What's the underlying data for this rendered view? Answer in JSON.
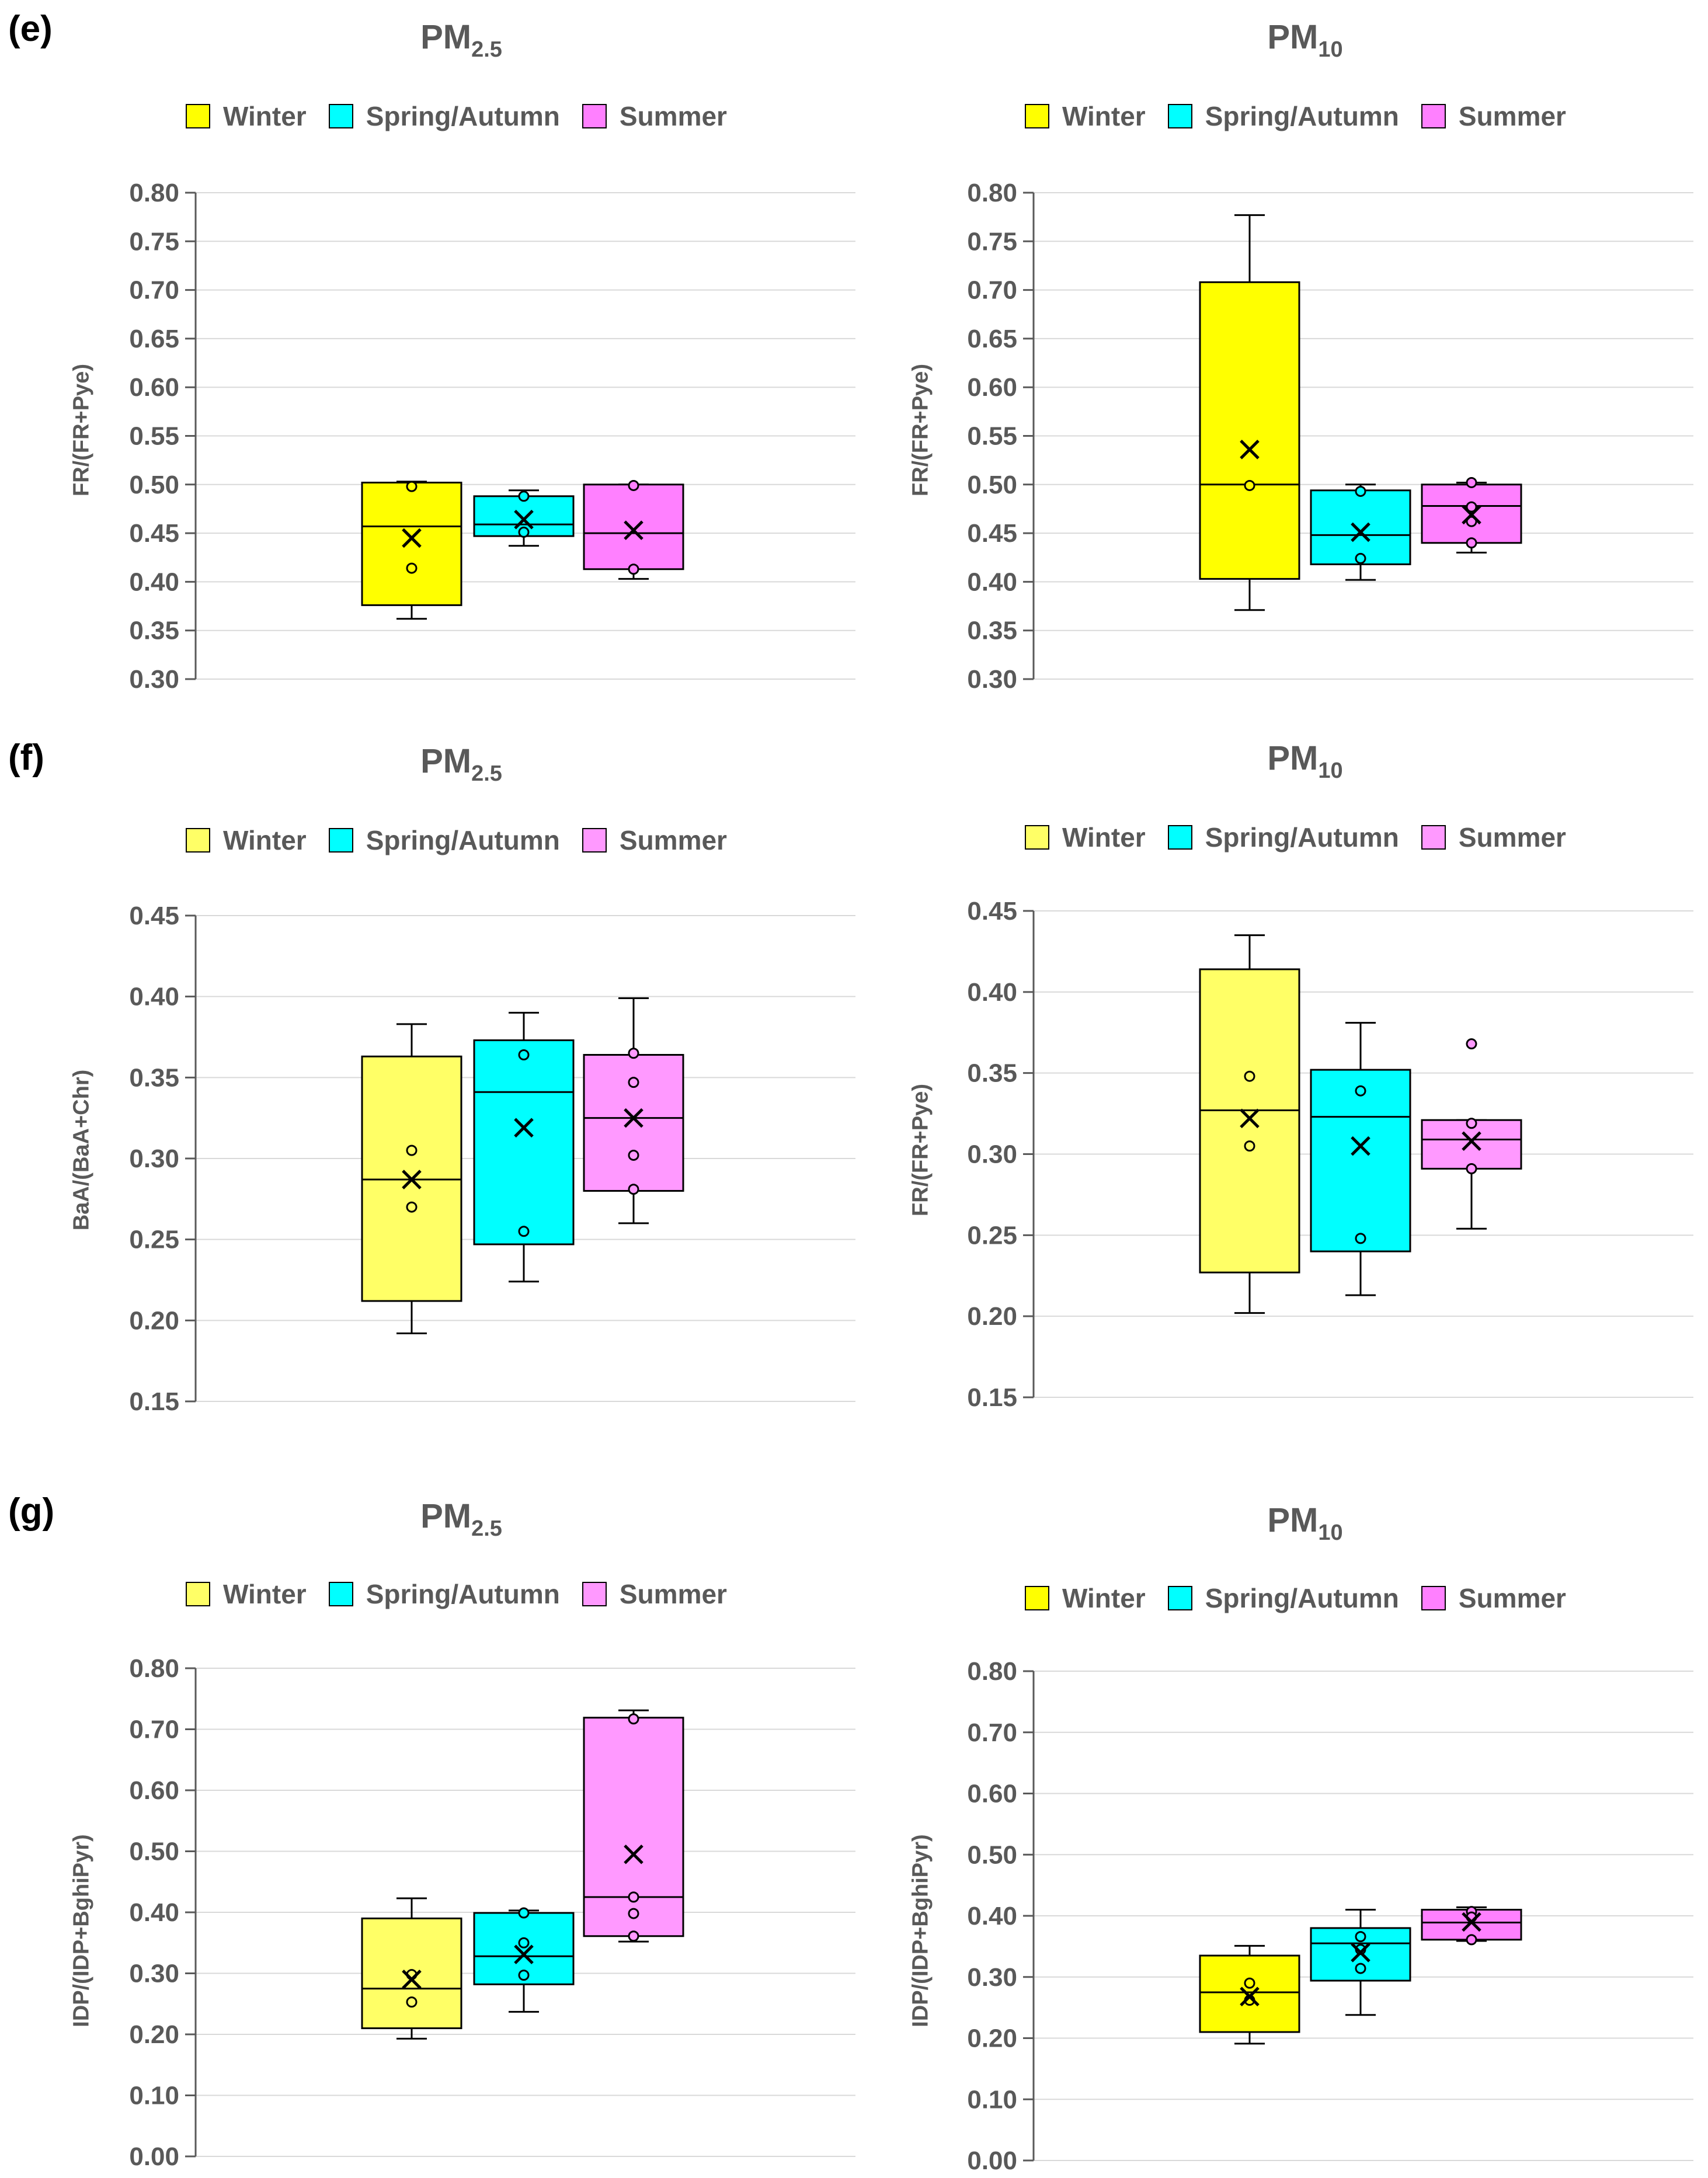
{
  "panels": [
    {
      "label": "(e)",
      "plots": [
        {
          "title_main": "PM",
          "title_sub": "2.5",
          "ylabel": "FR/(FR+Pye)"
        },
        {
          "title_main": "PM",
          "title_sub": "10",
          "ylabel": "FR/(FR+Pye)"
        }
      ]
    },
    {
      "label": "(f)",
      "plots": [
        {
          "title_main": "PM",
          "title_sub": "2.5",
          "ylabel": "BaA/(BaA+Chr)"
        },
        {
          "title_main": "PM",
          "title_sub": "10",
          "ylabel": "FR/(FR+Pye)"
        }
      ]
    },
    {
      "label": "(g)",
      "plots": [
        {
          "title_main": "PM",
          "title_sub": "2.5",
          "ylabel": "IDP/(IDP+BghiPyr)"
        },
        {
          "title_main": "PM",
          "title_sub": "10",
          "ylabel": "IDP/(IDP+BghiPyr)"
        }
      ]
    }
  ],
  "legend": [
    {
      "name": "Winter",
      "color": "#ffff00",
      "color_light": "#ffff66"
    },
    {
      "name": "Spring/Autumn",
      "color": "#00ffff",
      "color_light": "#00ffff"
    },
    {
      "name": "Summer",
      "color": "#ff80ff",
      "color_light": "#ff99ff"
    }
  ],
  "chart_data": [
    {
      "type": "box",
      "panel": "(e)",
      "title": "PM2.5",
      "ylabel": "FR/(FR+Pye)",
      "ylim": [
        0.3,
        0.8
      ],
      "yticks": [
        "0.30",
        "0.35",
        "0.40",
        "0.45",
        "0.50",
        "0.55",
        "0.60",
        "0.65",
        "0.70",
        "0.75",
        "0.80"
      ],
      "series": [
        {
          "name": "Winter",
          "min": 0.362,
          "q1": 0.376,
          "median": 0.457,
          "q3": 0.502,
          "max": 0.503,
          "mean": 0.445,
          "points": [
            0.498,
            0.414
          ]
        },
        {
          "name": "Spring/Autumn",
          "min": 0.437,
          "q1": 0.447,
          "median": 0.459,
          "q3": 0.488,
          "max": 0.494,
          "mean": 0.464,
          "points": [
            0.488,
            0.451
          ]
        },
        {
          "name": "Summer",
          "min": 0.403,
          "q1": 0.413,
          "median": 0.45,
          "q3": 0.5,
          "max": 0.5,
          "mean": 0.453,
          "points": [
            0.499,
            0.413
          ]
        }
      ]
    },
    {
      "type": "box",
      "panel": "(e)",
      "title": "PM10",
      "ylabel": "FR/(FR+Pye)",
      "ylim": [
        0.3,
        0.8
      ],
      "yticks": [
        "0.30",
        "0.35",
        "0.40",
        "0.45",
        "0.50",
        "0.55",
        "0.60",
        "0.65",
        "0.70",
        "0.75",
        "0.80"
      ],
      "series": [
        {
          "name": "Winter",
          "min": 0.371,
          "q1": 0.403,
          "median": 0.5,
          "q3": 0.708,
          "max": 0.777,
          "mean": 0.536,
          "points": [
            0.499
          ]
        },
        {
          "name": "Spring/Autumn",
          "min": 0.402,
          "q1": 0.418,
          "median": 0.448,
          "q3": 0.494,
          "max": 0.5,
          "mean": 0.451,
          "points": [
            0.493,
            0.424
          ]
        },
        {
          "name": "Summer",
          "min": 0.43,
          "q1": 0.44,
          "median": 0.478,
          "q3": 0.5,
          "max": 0.502,
          "mean": 0.469,
          "points": [
            0.502,
            0.477,
            0.462,
            0.44
          ]
        }
      ]
    },
    {
      "type": "box",
      "panel": "(f)",
      "title": "PM2.5",
      "ylabel": "BaA/(BaA+Chr)",
      "ylim": [
        0.15,
        0.45
      ],
      "yticks": [
        "0.15",
        "0.20",
        "0.25",
        "0.30",
        "0.35",
        "0.40",
        "0.45"
      ],
      "series": [
        {
          "name": "Winter",
          "min": 0.192,
          "q1": 0.212,
          "median": 0.287,
          "q3": 0.363,
          "max": 0.383,
          "mean": 0.287,
          "points": [
            0.305,
            0.27
          ]
        },
        {
          "name": "Spring/Autumn",
          "min": 0.224,
          "q1": 0.247,
          "median": 0.341,
          "q3": 0.373,
          "max": 0.39,
          "mean": 0.319,
          "points": [
            0.364,
            0.255
          ]
        },
        {
          "name": "Summer",
          "min": 0.26,
          "q1": 0.28,
          "median": 0.325,
          "q3": 0.364,
          "max": 0.399,
          "mean": 0.325,
          "points": [
            0.365,
            0.347,
            0.302,
            0.281
          ]
        }
      ]
    },
    {
      "type": "box",
      "panel": "(f)",
      "title": "PM10",
      "ylabel": "FR/(FR+Pye)",
      "ylim": [
        0.15,
        0.45
      ],
      "yticks": [
        "0.15",
        "0.20",
        "0.25",
        "0.30",
        "0.35",
        "0.40",
        "0.45"
      ],
      "series": [
        {
          "name": "Winter",
          "min": 0.202,
          "q1": 0.227,
          "median": 0.327,
          "q3": 0.414,
          "max": 0.435,
          "mean": 0.322,
          "points": [
            0.348,
            0.305
          ]
        },
        {
          "name": "Spring/Autumn",
          "min": 0.213,
          "q1": 0.24,
          "median": 0.323,
          "q3": 0.352,
          "max": 0.381,
          "mean": 0.305,
          "points": [
            0.339,
            0.248
          ]
        },
        {
          "name": "Summer",
          "min": 0.254,
          "q1": 0.291,
          "median": 0.309,
          "q3": 0.321,
          "max": 0.321,
          "mean": 0.308,
          "points": [
            0.368,
            0.319,
            0.291
          ]
        }
      ]
    },
    {
      "type": "box",
      "panel": "(g)",
      "title": "PM2.5",
      "ylabel": "IDP/(IDP+BghiPyr)",
      "ylim": [
        0.0,
        0.8
      ],
      "yticks": [
        "0.00",
        "0.10",
        "0.20",
        "0.30",
        "0.40",
        "0.50",
        "0.60",
        "0.70",
        "0.80"
      ],
      "series": [
        {
          "name": "Winter",
          "min": 0.193,
          "q1": 0.21,
          "median": 0.275,
          "q3": 0.39,
          "max": 0.423,
          "mean": 0.29,
          "points": [
            0.298,
            0.253
          ]
        },
        {
          "name": "Spring/Autumn",
          "min": 0.237,
          "q1": 0.282,
          "median": 0.328,
          "q3": 0.399,
          "max": 0.403,
          "mean": 0.331,
          "points": [
            0.399,
            0.35,
            0.297
          ]
        },
        {
          "name": "Summer",
          "min": 0.352,
          "q1": 0.361,
          "median": 0.425,
          "q3": 0.719,
          "max": 0.731,
          "mean": 0.495,
          "points": [
            0.717,
            0.425,
            0.398,
            0.361
          ]
        }
      ]
    },
    {
      "type": "box",
      "panel": "(g)",
      "title": "PM10",
      "ylabel": "IDP/(IDP+BghiPyr)",
      "ylim": [
        0.0,
        0.8
      ],
      "yticks": [
        "0.00",
        "0.10",
        "0.20",
        "0.30",
        "0.40",
        "0.50",
        "0.60",
        "0.70",
        "0.80"
      ],
      "series": [
        {
          "name": "Winter",
          "min": 0.191,
          "q1": 0.21,
          "median": 0.275,
          "q3": 0.335,
          "max": 0.351,
          "mean": 0.268,
          "points": [
            0.29,
            0.262
          ]
        },
        {
          "name": "Spring/Autumn",
          "min": 0.238,
          "q1": 0.294,
          "median": 0.355,
          "q3": 0.38,
          "max": 0.41,
          "mean": 0.34,
          "points": [
            0.366,
            0.345,
            0.314
          ]
        },
        {
          "name": "Summer",
          "min": 0.359,
          "q1": 0.361,
          "median": 0.389,
          "q3": 0.41,
          "max": 0.414,
          "mean": 0.39,
          "points": [
            0.407,
            0.398,
            0.361
          ]
        }
      ]
    }
  ]
}
